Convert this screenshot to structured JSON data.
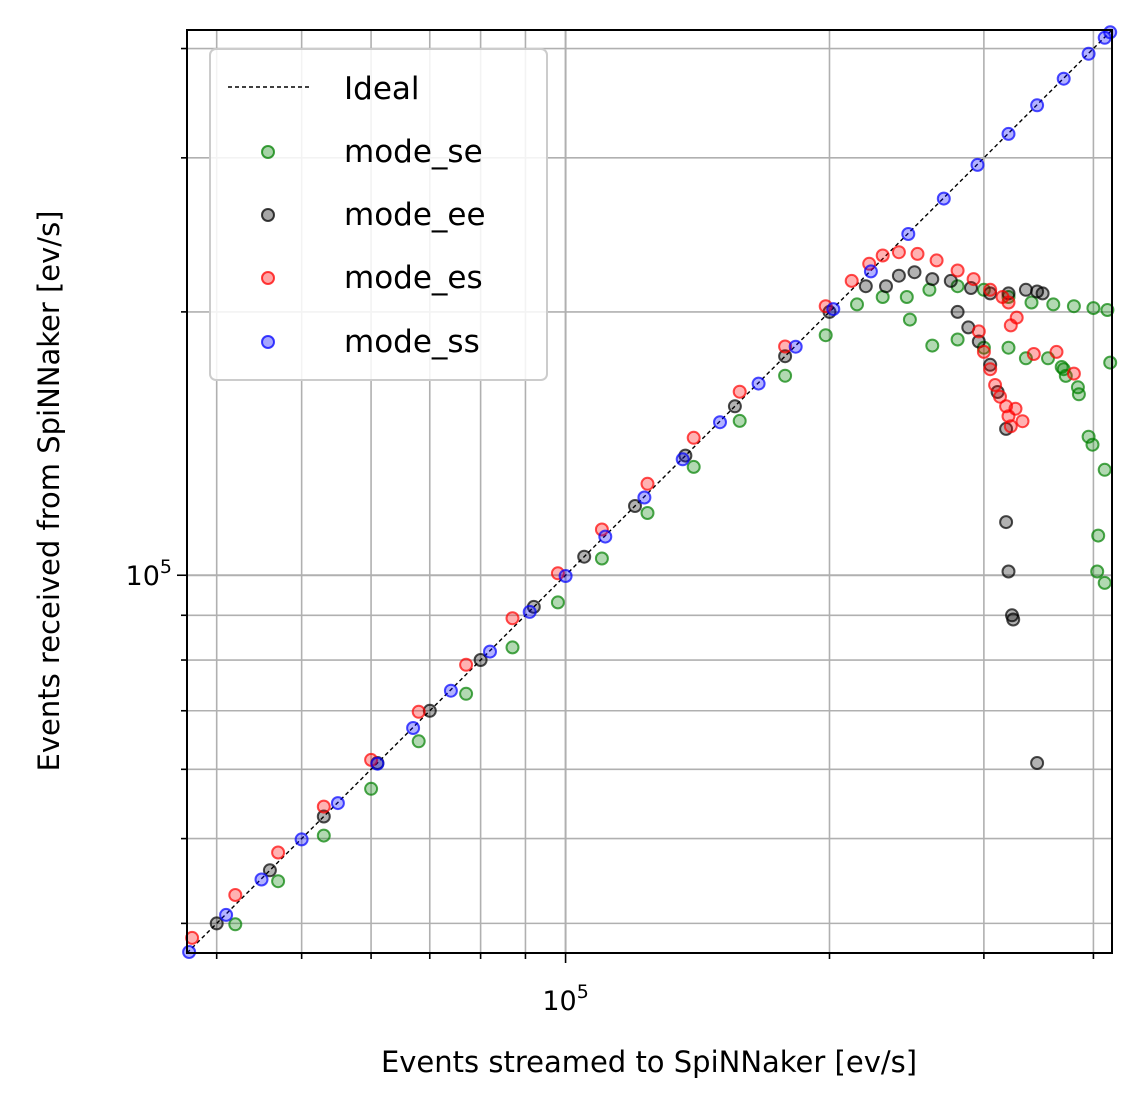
{
  "chart_data": {
    "type": "scatter",
    "title": "",
    "xlabel": "Events streamed to SpiNNaker [ev/s]",
    "ylabel": "Events received from SpiNNaker [ev/s]",
    "xscale": "log",
    "yscale": "log",
    "xlim": [
      37000,
      420000
    ],
    "ylim": [
      37000,
      420000
    ],
    "grid": true,
    "legend_position": "top-left",
    "x_major_tick_labels": [
      {
        "value": 100000,
        "label": "10",
        "exp": "5"
      }
    ],
    "y_major_tick_labels": [
      {
        "value": 100000,
        "label": "10",
        "exp": "5"
      }
    ],
    "minor_ticks": [
      40000,
      50000,
      60000,
      70000,
      80000,
      90000,
      200000,
      300000,
      400000
    ],
    "ideal_line": {
      "name": "Ideal",
      "color": "#000000",
      "style": "dashed",
      "points": [
        [
          37000,
          37000
        ],
        [
          420000,
          420000
        ]
      ]
    },
    "series": [
      {
        "name": "mode_se",
        "color": "#008000",
        "points": [
          [
            38000,
            36100
          ],
          [
            42000,
            39900
          ],
          [
            47000,
            44700
          ],
          [
            53000,
            50400
          ],
          [
            60000,
            57000
          ],
          [
            68000,
            64600
          ],
          [
            77000,
            73200
          ],
          [
            87000,
            82700
          ],
          [
            98000,
            93100
          ],
          [
            110000,
            104500
          ],
          [
            124000,
            117800
          ],
          [
            140000,
            133000
          ],
          [
            158000,
            150100
          ],
          [
            178000,
            169100
          ],
          [
            198000,
            188100
          ],
          [
            215000,
            204000
          ],
          [
            230000,
            208000
          ],
          [
            245000,
            208000
          ],
          [
            260000,
            212000
          ],
          [
            280000,
            214000
          ],
          [
            300000,
            212000
          ],
          [
            320000,
            208000
          ],
          [
            340000,
            205000
          ],
          [
            360000,
            204000
          ],
          [
            380000,
            203000
          ],
          [
            400000,
            202000
          ],
          [
            415000,
            201000
          ],
          [
            247000,
            196000
          ],
          [
            262000,
            183000
          ],
          [
            280000,
            186000
          ],
          [
            300000,
            182000
          ],
          [
            320000,
            182000
          ],
          [
            335000,
            177000
          ],
          [
            355000,
            177000
          ],
          [
            368000,
            173000
          ],
          [
            372000,
            169000
          ],
          [
            385000,
            161000
          ],
          [
            395000,
            144000
          ],
          [
            399000,
            141000
          ],
          [
            412000,
            132000
          ],
          [
            370000,
            172000
          ],
          [
            384000,
            164000
          ],
          [
            405000,
            111000
          ],
          [
            404000,
            101000
          ],
          [
            412000,
            98000
          ],
          [
            418000,
            175000
          ]
        ]
      },
      {
        "name": "mode_ee",
        "color": "#000000",
        "points": [
          [
            40000,
            40000
          ],
          [
            46000,
            46000
          ],
          [
            53000,
            53000
          ],
          [
            61000,
            61000
          ],
          [
            70000,
            70000
          ],
          [
            80000,
            80000
          ],
          [
            92000,
            92000
          ],
          [
            105000,
            105000
          ],
          [
            120000,
            120000
          ],
          [
            137000,
            137000
          ],
          [
            156000,
            156000
          ],
          [
            178000,
            178000
          ],
          [
            200000,
            200000
          ],
          [
            220000,
            214000
          ],
          [
            232000,
            214000
          ],
          [
            240000,
            220000
          ],
          [
            250000,
            222000
          ],
          [
            262000,
            218000
          ],
          [
            275000,
            217000
          ],
          [
            290000,
            213000
          ],
          [
            305000,
            210000
          ],
          [
            320000,
            210000
          ],
          [
            335000,
            212000
          ],
          [
            345000,
            211000
          ],
          [
            350000,
            210000
          ],
          [
            280000,
            200000
          ],
          [
            288000,
            192000
          ],
          [
            296000,
            185000
          ],
          [
            305000,
            174000
          ],
          [
            311000,
            162000
          ],
          [
            318000,
            147000
          ],
          [
            318000,
            115000
          ],
          [
            320000,
            101000
          ],
          [
            323000,
            90000
          ],
          [
            324000,
            89000
          ],
          [
            345000,
            61000
          ]
        ]
      },
      {
        "name": "mode_es",
        "color": "#ff0000",
        "points": [
          [
            37500,
            38500
          ],
          [
            42000,
            43100
          ],
          [
            47000,
            48200
          ],
          [
            53000,
            54400
          ],
          [
            60000,
            61500
          ],
          [
            68000,
            69800
          ],
          [
            77000,
            79000
          ],
          [
            87000,
            89300
          ],
          [
            98000,
            100500
          ],
          [
            110000,
            112800
          ],
          [
            124000,
            127200
          ],
          [
            140000,
            143600
          ],
          [
            158000,
            162100
          ],
          [
            178000,
            182600
          ],
          [
            198000,
            203000
          ],
          [
            212000,
            217000
          ],
          [
            222000,
            227000
          ],
          [
            230000,
            232000
          ],
          [
            240000,
            234000
          ],
          [
            252000,
            233000
          ],
          [
            265000,
            229000
          ],
          [
            280000,
            223000
          ],
          [
            292000,
            218000
          ],
          [
            305000,
            212000
          ],
          [
            315000,
            208000
          ],
          [
            320000,
            205000
          ],
          [
            327000,
            197000
          ],
          [
            322000,
            193000
          ],
          [
            296000,
            190000
          ],
          [
            300000,
            180000
          ],
          [
            305000,
            172000
          ],
          [
            309000,
            165000
          ],
          [
            313000,
            160000
          ],
          [
            318000,
            156000
          ],
          [
            320000,
            152000
          ],
          [
            322000,
            148000
          ],
          [
            326000,
            155000
          ],
          [
            332000,
            150000
          ],
          [
            342000,
            179000
          ],
          [
            363000,
            180000
          ],
          [
            380000,
            170000
          ]
        ]
      },
      {
        "name": "mode_ss",
        "color": "#0000ff",
        "points": [
          [
            37200,
            37100
          ],
          [
            41000,
            40900
          ],
          [
            45000,
            44900
          ],
          [
            50000,
            49900
          ],
          [
            55000,
            54900
          ],
          [
            61000,
            60900
          ],
          [
            67000,
            66900
          ],
          [
            74000,
            73800
          ],
          [
            82000,
            81800
          ],
          [
            91000,
            90800
          ],
          [
            100000,
            99800
          ],
          [
            111000,
            110700
          ],
          [
            123000,
            122700
          ],
          [
            136000,
            135700
          ],
          [
            150000,
            149600
          ],
          [
            166000,
            165600
          ],
          [
            183000,
            182500
          ],
          [
            202000,
            201500
          ],
          [
            223000,
            222500
          ],
          [
            246000,
            245500
          ],
          [
            270000,
            269500
          ],
          [
            295000,
            294500
          ],
          [
            320000,
            319500
          ],
          [
            345000,
            344500
          ],
          [
            370000,
            369500
          ],
          [
            395000,
            394500
          ],
          [
            412000,
            411500
          ],
          [
            418000,
            417500
          ]
        ]
      }
    ]
  }
}
